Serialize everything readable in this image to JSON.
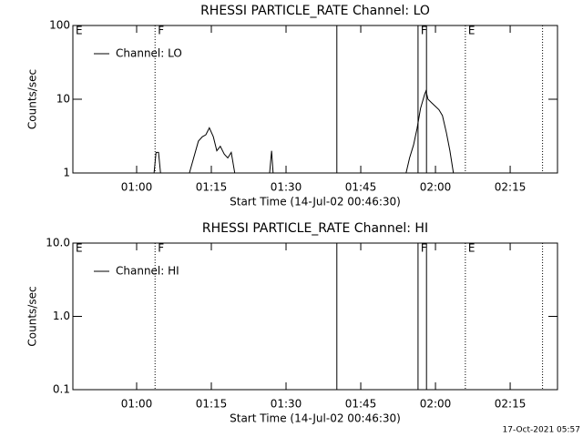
{
  "chart_data": [
    {
      "type": "line",
      "title": "RHESSI PARTICLE_RATE Channel: LO",
      "ylabel": "Counts/sec",
      "xlabel": "Start Time (14-Jul-02 00:46:30)",
      "log_y": true,
      "legend": "upper left",
      "xlim": [
        47.2,
        144.5
      ],
      "ylim": [
        1,
        100
      ],
      "yticks": [
        1,
        10,
        100
      ],
      "xticks": [
        {
          "value": 60,
          "label": "01:00"
        },
        {
          "value": 75,
          "label": "01:15"
        },
        {
          "value": 90,
          "label": "01:30"
        },
        {
          "value": 105,
          "label": "01:45"
        },
        {
          "value": 120,
          "label": "02:00"
        },
        {
          "value": 135,
          "label": "02:15"
        }
      ],
      "markers": [
        {
          "x": 47.2,
          "label": "E",
          "style": "solid"
        },
        {
          "x": 63.7,
          "label": "F",
          "style": "dotted"
        },
        {
          "x": 100.2,
          "style": "solid"
        },
        {
          "x": 116.5,
          "label": "F",
          "style": "solid"
        },
        {
          "x": 118.2,
          "style": "solid"
        },
        {
          "x": 126.0,
          "label": "E",
          "style": "dotted"
        },
        {
          "x": 141.5,
          "style": "dotted"
        }
      ],
      "series": [
        {
          "name": "Channel: LO",
          "color": "#000000",
          "x": [
            63.5,
            63.9,
            64.4,
            64.8,
            67.0,
            70.6,
            72.4,
            73.2,
            73.9,
            74.6,
            75.4,
            76.1,
            76.8,
            77.6,
            78.3,
            79.0,
            79.7,
            83.0,
            86.7,
            87.1,
            87.4,
            100.0,
            114.1,
            114.8,
            115.6,
            116.3,
            117.0,
            117.8,
            118.1,
            118.5,
            119.2,
            120.0,
            120.7,
            121.4,
            122.2,
            122.9,
            123.6
          ],
          "values": [
            1,
            1.9,
            1.9,
            1,
            null,
            1,
            2.7,
            3.1,
            3.3,
            4.1,
            3.1,
            2.0,
            2.3,
            1.8,
            1.6,
            1.9,
            1,
            null,
            1,
            2.0,
            1,
            null,
            1,
            1.6,
            2.4,
            4.0,
            7.5,
            11.5,
            13,
            10,
            9,
            8,
            7.2,
            6,
            3.5,
            2.0,
            1
          ]
        }
      ]
    },
    {
      "type": "line",
      "title": "RHESSI PARTICLE_RATE Channel: HI",
      "ylabel": "Counts/sec",
      "xlabel": "Start Time (14-Jul-02 00:46:30)",
      "log_y": true,
      "legend": "upper left",
      "xlim": [
        47.2,
        144.5
      ],
      "ylim": [
        0.1,
        10
      ],
      "yticks": [
        {
          "value": 0.1,
          "label": "0.1"
        },
        {
          "value": 1,
          "label": "1.0"
        },
        {
          "value": 10,
          "label": "10.0"
        }
      ],
      "xticks": [
        {
          "value": 60,
          "label": "01:00"
        },
        {
          "value": 75,
          "label": "01:15"
        },
        {
          "value": 90,
          "label": "01:30"
        },
        {
          "value": 105,
          "label": "01:45"
        },
        {
          "value": 120,
          "label": "02:00"
        },
        {
          "value": 135,
          "label": "02:15"
        }
      ],
      "markers": [
        {
          "x": 47.2,
          "label": "E",
          "style": "solid"
        },
        {
          "x": 63.7,
          "label": "F",
          "style": "dotted"
        },
        {
          "x": 100.2,
          "style": "solid"
        },
        {
          "x": 116.5,
          "label": "F",
          "style": "solid"
        },
        {
          "x": 118.2,
          "style": "solid"
        },
        {
          "x": 126.0,
          "label": "E",
          "style": "dotted"
        },
        {
          "x": 141.5,
          "style": "dotted"
        }
      ],
      "series": [
        {
          "name": "Channel: HI",
          "color": "#000000",
          "x": [],
          "values": []
        }
      ]
    }
  ],
  "footer": "17-Oct-2021 05:57"
}
